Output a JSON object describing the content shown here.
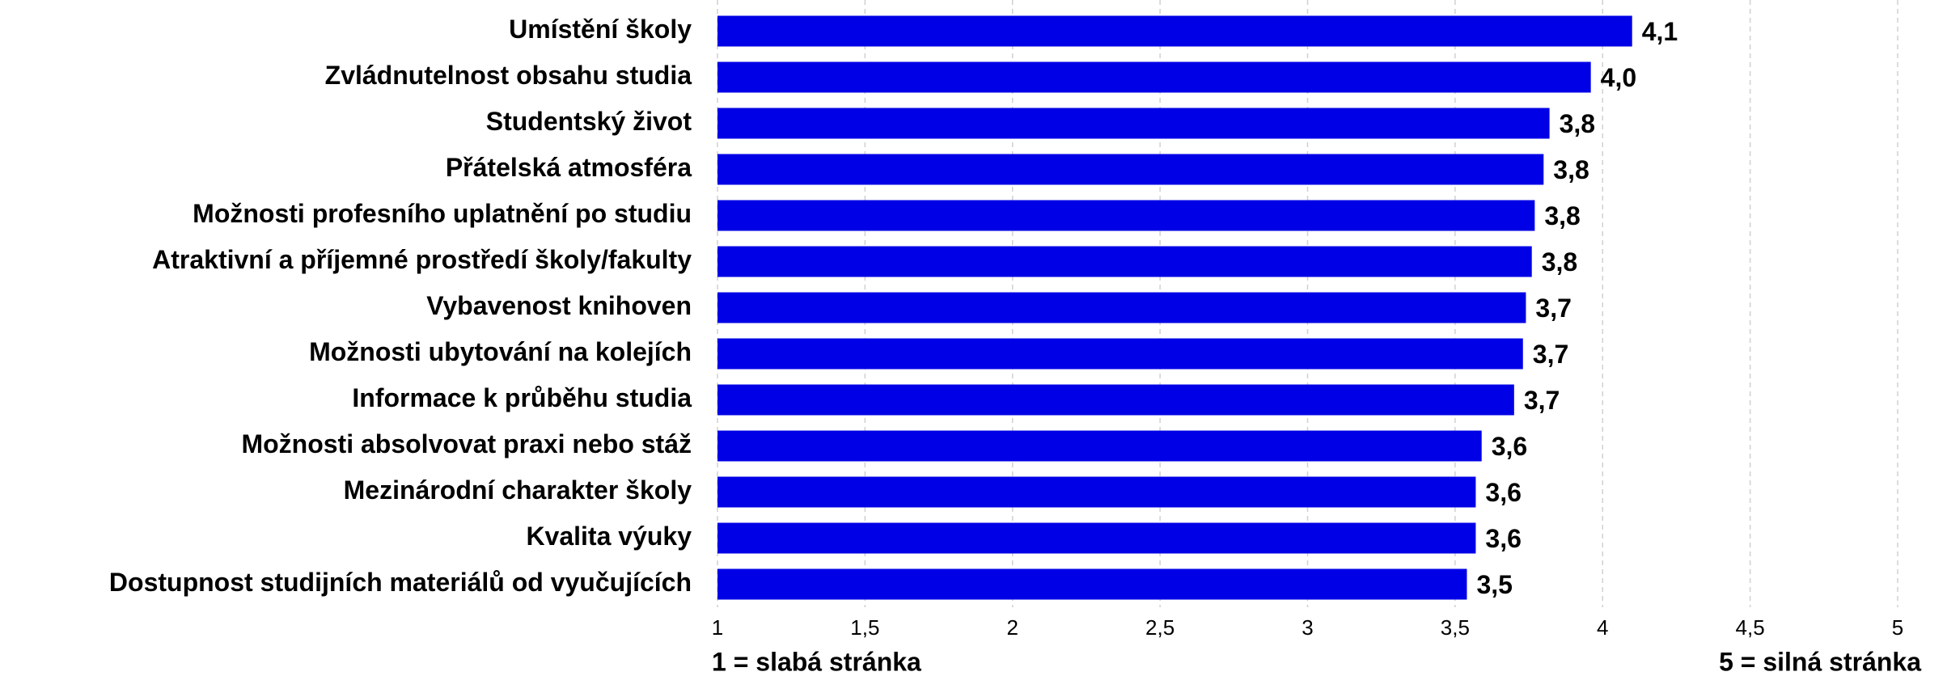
{
  "chart_data": {
    "type": "barh",
    "categories": [
      "Umístění školy",
      "Zvládnutelnost obsahu studia",
      "Studentský život",
      "Přátelská atmosféra",
      "Možnosti profesního uplatnění po studiu",
      "Atraktivní a příjemné prostředí školy/fakulty",
      "Vybavenost knihoven",
      "Možnosti ubytování na kolejích",
      "Informace k průběhu studia",
      "Možnosti absolvovat praxi nebo stáž",
      "Mezinárodní charakter školy",
      "Kvalita výuky",
      "Dostupnost studijních materiálů od vyučujících"
    ],
    "values": [
      4.1,
      3.96,
      3.82,
      3.8,
      3.77,
      3.76,
      3.74,
      3.73,
      3.7,
      3.59,
      3.57,
      3.57,
      3.54
    ],
    "value_labels": [
      "4,1",
      "4,0",
      "3,8",
      "3,8",
      "3,8",
      "3,8",
      "3,7",
      "3,7",
      "3,7",
      "3,6",
      "3,6",
      "3,6",
      "3,5"
    ],
    "color": "#0000e6",
    "xlim": [
      1,
      5
    ],
    "xticks": [
      1,
      {
        "value": 1.5,
        "label": "1,5"
      },
      2,
      {
        "value": 2.5,
        "label": "2,5"
      },
      3,
      {
        "value": 3.5,
        "label": "3,5"
      },
      4,
      {
        "value": 4.5,
        "label": "4,5"
      },
      5
    ],
    "grid": true,
    "annotations": [
      "1 = slabá stránka",
      "5 = silná stránka"
    ]
  }
}
